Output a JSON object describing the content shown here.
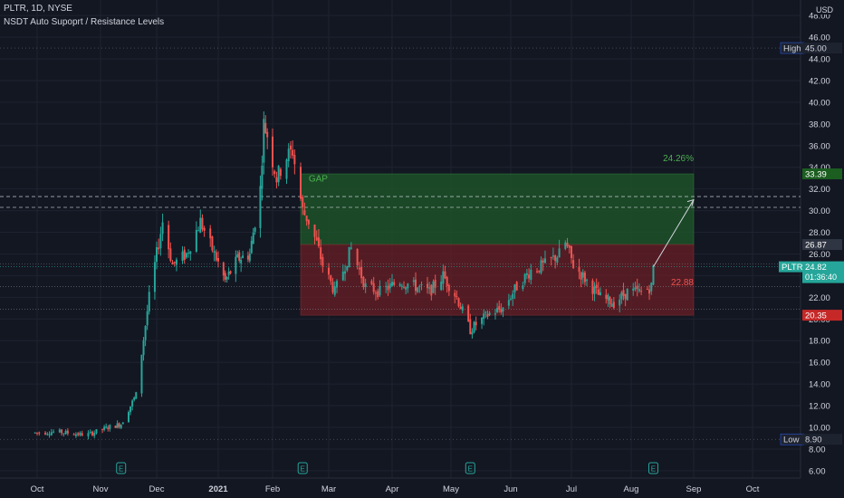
{
  "header": {
    "symbol_line": "PLTR, 1D, NYSE",
    "indicator_line": "NSDT Auto Supoprt / Resistance Levels"
  },
  "currency": "USD",
  "colors": {
    "background": "#131722",
    "grid": "#1f2330",
    "axis_text": "#d1d4dc",
    "up": "#26a69a",
    "down": "#ef5350",
    "profit_zone": "#1f5a2a",
    "loss_zone": "#6a1f25",
    "target_text": "#4caf50",
    "stop_text": "#ef5350",
    "label_dark": "#1e2330",
    "label_green": "#1b5e20",
    "label_red": "#c62828",
    "label_last": "#2f3542"
  },
  "chart_data": {
    "type": "candlestick",
    "y_scale": "linear",
    "ylim": [
      5.0,
      48.0
    ],
    "y_ticks": [
      "6.00",
      "8.00",
      "10.00",
      "12.00",
      "14.00",
      "16.00",
      "18.00",
      "20.00",
      "22.00",
      "24.00",
      "26.00",
      "28.00",
      "30.00",
      "32.00",
      "34.00",
      "36.00",
      "38.00",
      "40.00",
      "42.00",
      "44.00",
      "46.00",
      "48.00"
    ],
    "x_ticks": [
      "Oct",
      "Nov",
      "Dec",
      "2021",
      "Feb",
      "Mar",
      "Apr",
      "May",
      "Jun",
      "Jul",
      "Aug",
      "Sep",
      "Oct"
    ],
    "x_range": [
      "2020-09-25",
      "2021-10-25"
    ],
    "earnings_markers": [
      "2020-11-12",
      "2021-02-16",
      "2021-05-11",
      "2021-08-12"
    ],
    "price_path": [
      [
        "2020-09-30",
        9.5
      ],
      [
        "2020-10-10",
        9.6
      ],
      [
        "2020-10-25",
        9.3
      ],
      [
        "2020-11-05",
        10.0
      ],
      [
        "2020-11-12",
        10.3
      ],
      [
        "2020-11-20",
        13.0
      ],
      [
        "2020-11-27",
        22.0
      ],
      [
        "2020-12-01",
        26.0
      ],
      [
        "2020-12-04",
        29.0
      ],
      [
        "2020-12-09",
        25.0
      ],
      [
        "2020-12-16",
        26.0
      ],
      [
        "2020-12-23",
        29.0
      ],
      [
        "2020-12-30",
        26.0
      ],
      [
        "2021-01-05",
        23.5
      ],
      [
        "2021-01-12",
        25.5
      ],
      [
        "2021-01-19",
        26.0
      ],
      [
        "2021-01-25",
        32.0
      ],
      [
        "2021-01-27",
        38.0
      ],
      [
        "2021-01-29",
        37.0
      ],
      [
        "2021-02-03",
        33.0
      ],
      [
        "2021-02-08",
        35.0
      ],
      [
        "2021-02-11",
        35.5
      ],
      [
        "2021-02-16",
        30.0
      ],
      [
        "2021-02-19",
        29.0
      ],
      [
        "2021-02-23",
        27.0
      ],
      [
        "2021-02-26",
        25.0
      ],
      [
        "2021-03-04",
        22.5
      ],
      [
        "2021-03-12",
        26.5
      ],
      [
        "2021-03-19",
        23.0
      ],
      [
        "2021-03-26",
        22.5
      ],
      [
        "2021-04-05",
        23.5
      ],
      [
        "2021-04-13",
        23.0
      ],
      [
        "2021-04-20",
        22.5
      ],
      [
        "2021-04-27",
        24.0
      ],
      [
        "2021-05-04",
        22.0
      ],
      [
        "2021-05-11",
        19.0
      ],
      [
        "2021-05-14",
        19.5
      ],
      [
        "2021-05-21",
        20.5
      ],
      [
        "2021-05-28",
        21.0
      ],
      [
        "2021-06-04",
        23.0
      ],
      [
        "2021-06-11",
        24.5
      ],
      [
        "2021-06-18",
        25.0
      ],
      [
        "2021-06-25",
        26.0
      ],
      [
        "2021-06-28",
        27.0
      ],
      [
        "2021-07-02",
        25.0
      ],
      [
        "2021-07-09",
        23.5
      ],
      [
        "2021-07-16",
        22.0
      ],
      [
        "2021-07-23",
        21.5
      ],
      [
        "2021-07-30",
        22.5
      ],
      [
        "2021-08-06",
        22.5
      ],
      [
        "2021-08-11",
        23.0
      ],
      [
        "2021-08-12",
        24.82
      ]
    ],
    "price_lines": {
      "high": 45.0,
      "low": 8.9,
      "last": 24.82,
      "target": 33.39,
      "entry": 26.87,
      "stop": 20.35,
      "stop_level_label": 22.88,
      "resistance_dashed": [
        31.3,
        30.3
      ],
      "support_dotted": [
        20.9,
        25.1,
        23.0
      ]
    },
    "position_tool": {
      "start": "2021-02-15",
      "end": "2021-09-01",
      "target": 33.39,
      "entry": 26.87,
      "stop": 20.35,
      "target_pct_text": "24.26%",
      "stop_text": "22.88"
    },
    "projection_arrow": {
      "from": [
        "2021-08-12",
        24.82
      ],
      "to": [
        "2021-09-01",
        31.0
      ]
    },
    "annotations": [
      {
        "text": "GAP",
        "date": "2021-02-19",
        "price": 33.0
      }
    ]
  },
  "axis_labels": {
    "high_tag": "High",
    "high_value": "45.00",
    "low_tag": "Low",
    "low_value": "8.90",
    "target_value": "33.39",
    "entry_value": "26.87",
    "stop_value": "20.35",
    "last_tag": "PLTR",
    "last_value": "24.82",
    "countdown": "01:36:40"
  }
}
